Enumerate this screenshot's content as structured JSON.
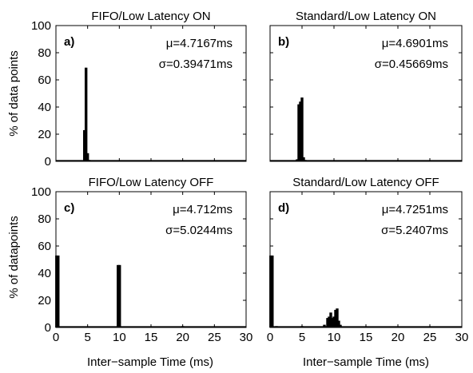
{
  "ylabel_top": "% of data points",
  "ylabel_bottom": "% of datapoints",
  "xlabel": "Inter−sample Time (ms)",
  "x_ticks": [
    "0",
    "5",
    "10",
    "15",
    "20",
    "25",
    "30"
  ],
  "y_ticks": [
    "0",
    "20",
    "40",
    "60",
    "80",
    "100"
  ],
  "chart_data": [
    {
      "type": "bar",
      "title": "FIFO/Low Latency ON",
      "panel_label": "a)",
      "mu": "μ=4.7167ms",
      "sigma": "σ=0.39471ms",
      "xlim": [
        0,
        30
      ],
      "ylim": [
        0,
        100
      ],
      "bars": [
        [
          4.5,
          23
        ],
        [
          4.75,
          69
        ],
        [
          5.0,
          6
        ],
        [
          5.25,
          1
        ]
      ]
    },
    {
      "type": "bar",
      "title": "Standard/Low Latency ON",
      "panel_label": "b)",
      "mu": "μ=4.6901ms",
      "sigma": "σ=0.45669ms",
      "xlim": [
        0,
        30
      ],
      "ylim": [
        0,
        100
      ],
      "bars": [
        [
          4.25,
          1.5
        ],
        [
          4.5,
          42
        ],
        [
          4.75,
          44
        ],
        [
          5.0,
          47
        ],
        [
          5.25,
          3
        ],
        [
          5.5,
          1
        ]
      ]
    },
    {
      "type": "bar",
      "title": "FIFO/Low Latency OFF",
      "panel_label": "c)",
      "mu": "μ=4.712ms",
      "sigma": "σ=5.0244ms",
      "xlim": [
        0,
        30
      ],
      "ylim": [
        0,
        100
      ],
      "bars": [
        [
          0.1,
          53
        ],
        [
          0.35,
          53
        ],
        [
          9.8,
          46
        ],
        [
          10.05,
          46
        ],
        [
          20.0,
          1
        ]
      ]
    },
    {
      "type": "bar",
      "title": "Standard/Low Latency OFF",
      "panel_label": "d)",
      "mu": "μ=4.7251ms",
      "sigma": "σ=5.2407ms",
      "xlim": [
        0,
        30
      ],
      "ylim": [
        0,
        100
      ],
      "bars": [
        [
          0.1,
          53
        ],
        [
          0.35,
          53
        ],
        [
          1.0,
          1
        ],
        [
          5.0,
          1
        ],
        [
          8.5,
          2
        ],
        [
          9.0,
          7
        ],
        [
          9.25,
          8
        ],
        [
          9.5,
          11
        ],
        [
          9.75,
          7
        ],
        [
          10.0,
          8
        ],
        [
          10.25,
          13
        ],
        [
          10.5,
          14
        ],
        [
          10.75,
          5
        ],
        [
          11.0,
          2
        ]
      ]
    }
  ]
}
